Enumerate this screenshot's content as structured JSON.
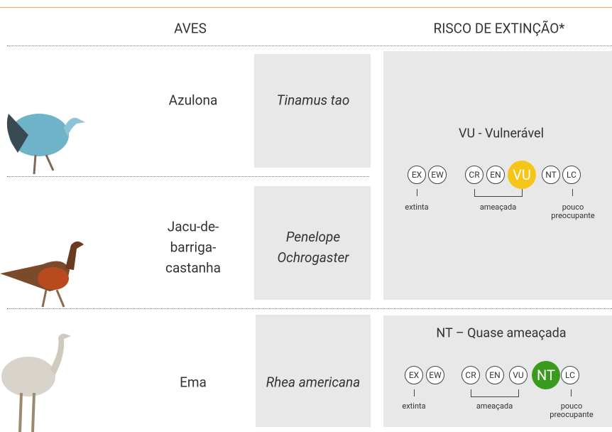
{
  "header": {
    "birds": "AVES",
    "risk": "RISCO DE EXTINÇÃO*"
  },
  "rows": [
    {
      "name": "Azulona",
      "scientific": "Tinamus tao"
    },
    {
      "name": "Jacu-de-barriga-castanha",
      "scientific": "Penelope Ochrogaster"
    },
    {
      "name": "Ema",
      "scientific": "Rhea americana"
    }
  ],
  "risk_groups": [
    {
      "status": "VU - Vulnerável",
      "highlight": "VU",
      "highlight_color": "#f5c518",
      "scale": [
        "EX",
        "EW",
        "CR",
        "EN",
        "VU",
        "NT",
        "LC"
      ],
      "labels": {
        "extinct": "extinta",
        "threatened": "ameaçada",
        "least_concern": "pouco preocupante"
      }
    },
    {
      "status": "NT – Quase ameaçada",
      "highlight": "NT",
      "highlight_color": "#3a9a1e",
      "scale": [
        "EX",
        "EW",
        "CR",
        "EN",
        "VU",
        "NT",
        "LC"
      ],
      "labels": {
        "extinct": "extinta",
        "threatened": "ameaçada",
        "least_concern": "pouco preocupante"
      }
    }
  ]
}
